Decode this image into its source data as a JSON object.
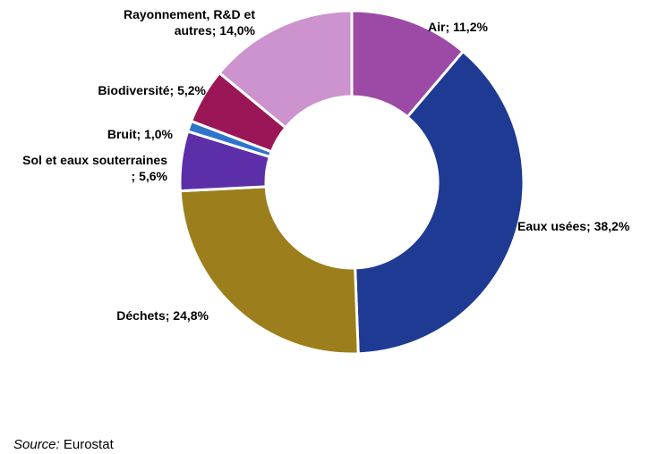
{
  "chart_data": {
    "type": "pie",
    "donut": true,
    "slices": [
      {
        "name": "Air",
        "value": 11.2,
        "label_lines": [
          "Air; 11,2%"
        ],
        "color": "#9c4aa6"
      },
      {
        "name": "Eaux usées",
        "value": 38.2,
        "label_lines": [
          "Eaux usées; 38,2%"
        ],
        "color": "#1f3a93"
      },
      {
        "name": "Déchets",
        "value": 24.8,
        "label_lines": [
          "Déchets; 24,8%"
        ],
        "color": "#9c7f1c"
      },
      {
        "name": "Sol et eaux souterraines",
        "value": 5.6,
        "label_lines": [
          "Sol et eaux souterraines",
          "; 5,6%"
        ],
        "color": "#5c2fa8"
      },
      {
        "name": "Bruit",
        "value": 1.0,
        "label_lines": [
          "Bruit; 1,0%"
        ],
        "color": "#2e75c9"
      },
      {
        "name": "Biodiversité",
        "value": 5.2,
        "label_lines": [
          "Biodiversité; 5,2%"
        ],
        "color": "#9b1656"
      },
      {
        "name": "Rayonnement, R&D et autres",
        "value": 14.0,
        "label_lines": [
          "Rayonnement, R&D et",
          "autres; 14,0%"
        ],
        "color": "#cc93cf"
      }
    ]
  },
  "source": {
    "label": "Source:",
    "text": "Eurostat"
  }
}
